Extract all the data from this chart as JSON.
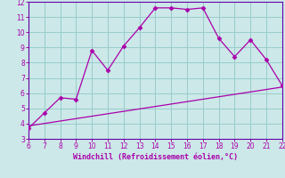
{
  "x": [
    6,
    7,
    8,
    9,
    10,
    11,
    12,
    13,
    14,
    15,
    16,
    17,
    18,
    19,
    20,
    21,
    22
  ],
  "y": [
    3.7,
    4.7,
    5.7,
    5.6,
    8.8,
    7.5,
    9.1,
    10.3,
    11.6,
    11.6,
    11.5,
    11.6,
    9.6,
    8.4,
    9.5,
    8.2,
    6.5
  ],
  "trend_x": [
    6,
    22
  ],
  "trend_y": [
    3.85,
    6.4
  ],
  "line_color": "#aa00aa",
  "marker_color": "#aa00aa",
  "bg_color": "#cce8e8",
  "grid_color": "#99cccc",
  "xlabel": "Windchill (Refroidissement éolien,°C)",
  "xlabel_color": "#aa00aa",
  "tick_color": "#aa00aa",
  "spine_color": "#6600aa",
  "xlim": [
    6,
    22
  ],
  "ylim": [
    3,
    12
  ],
  "yticks": [
    3,
    4,
    5,
    6,
    7,
    8,
    9,
    10,
    11,
    12
  ],
  "xticks": [
    6,
    7,
    8,
    9,
    10,
    11,
    12,
    13,
    14,
    15,
    16,
    17,
    18,
    19,
    20,
    21,
    22
  ]
}
